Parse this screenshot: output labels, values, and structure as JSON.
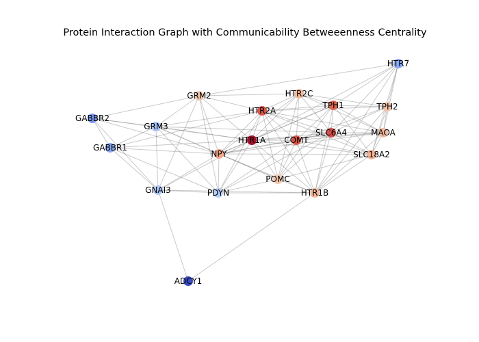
{
  "title": "Protein Interaction Graph with Communicability Betweeenness Centrality",
  "nodes": [
    {
      "id": "HTR7",
      "color": "#88a8f4"
    },
    {
      "id": "HTR2C",
      "color": "#f2b99c"
    },
    {
      "id": "GRM2",
      "color": "#f0c6ad"
    },
    {
      "id": "TPH1",
      "color": "#dd6651"
    },
    {
      "id": "TPH2",
      "color": "#f2c4ab"
    },
    {
      "id": "HTR2A",
      "color": "#d9574a"
    },
    {
      "id": "GABBR2",
      "color": "#7a97ef"
    },
    {
      "id": "GRM3",
      "color": "#a8c2f8"
    },
    {
      "id": "SLC6A4",
      "color": "#d4504a"
    },
    {
      "id": "MAOA",
      "color": "#f2bba0"
    },
    {
      "id": "HTR1A",
      "color": "#a50f29"
    },
    {
      "id": "COMT",
      "color": "#d65345"
    },
    {
      "id": "GABBR1",
      "color": "#88a6f2"
    },
    {
      "id": "NPY",
      "color": "#f5a88a"
    },
    {
      "id": "SLC18A2",
      "color": "#f3b294"
    },
    {
      "id": "POMC",
      "color": "#f3c5ad"
    },
    {
      "id": "GNAI3",
      "color": "#b0c8f8"
    },
    {
      "id": "PDYN",
      "color": "#b7cdf9"
    },
    {
      "id": "HTR1B",
      "color": "#f3b89c"
    },
    {
      "id": "ADCY1",
      "color": "#3a4cc0"
    }
  ],
  "edges": [
    [
      "HTR7",
      "HTR1A"
    ],
    [
      "HTR7",
      "TPH1"
    ],
    [
      "HTR7",
      "TPH2"
    ],
    [
      "HTR7",
      "GRM2"
    ],
    [
      "HTR7",
      "MAOA"
    ],
    [
      "HTR7",
      "SLC18A2"
    ],
    [
      "HTR7",
      "SLC6A4"
    ],
    [
      "HTR7",
      "HTR1B"
    ],
    [
      "HTR2C",
      "HTR2A"
    ],
    [
      "HTR2C",
      "TPH1"
    ],
    [
      "HTR2C",
      "TPH2"
    ],
    [
      "HTR2C",
      "SLC6A4"
    ],
    [
      "HTR2C",
      "COMT"
    ],
    [
      "HTR2C",
      "HTR1A"
    ],
    [
      "HTR2C",
      "MAOA"
    ],
    [
      "HTR2C",
      "POMC"
    ],
    [
      "HTR2C",
      "GRM2"
    ],
    [
      "HTR2C",
      "NPY"
    ],
    [
      "GRM2",
      "GABBR2"
    ],
    [
      "GRM2",
      "GRM3"
    ],
    [
      "GRM2",
      "HTR2A"
    ],
    [
      "GRM2",
      "HTR1A"
    ],
    [
      "GRM2",
      "NPY"
    ],
    [
      "GRM2",
      "GNAI3"
    ],
    [
      "GRM2",
      "PDYN"
    ],
    [
      "TPH1",
      "TPH2"
    ],
    [
      "TPH1",
      "HTR2A"
    ],
    [
      "TPH1",
      "SLC6A4"
    ],
    [
      "TPH1",
      "MAOA"
    ],
    [
      "TPH1",
      "COMT"
    ],
    [
      "TPH1",
      "HTR1A"
    ],
    [
      "TPH1",
      "SLC18A2"
    ],
    [
      "TPH1",
      "NPY"
    ],
    [
      "TPH1",
      "POMC"
    ],
    [
      "TPH1",
      "HTR1B"
    ],
    [
      "TPH2",
      "SLC6A4"
    ],
    [
      "TPH2",
      "MAOA"
    ],
    [
      "TPH2",
      "SLC18A2"
    ],
    [
      "TPH2",
      "HTR2A"
    ],
    [
      "TPH2",
      "COMT"
    ],
    [
      "TPH2",
      "HTR1B"
    ],
    [
      "HTR2A",
      "SLC6A4"
    ],
    [
      "HTR2A",
      "COMT"
    ],
    [
      "HTR2A",
      "HTR1A"
    ],
    [
      "HTR2A",
      "MAOA"
    ],
    [
      "HTR2A",
      "NPY"
    ],
    [
      "HTR2A",
      "GRM3"
    ],
    [
      "HTR2A",
      "SLC18A2"
    ],
    [
      "HTR2A",
      "POMC"
    ],
    [
      "HTR2A",
      "PDYN"
    ],
    [
      "HTR2A",
      "HTR1B"
    ],
    [
      "HTR2A",
      "GABBR1"
    ],
    [
      "GABBR2",
      "GRM3"
    ],
    [
      "GABBR2",
      "GABBR1"
    ],
    [
      "GABBR2",
      "HTR1A"
    ],
    [
      "GABBR2",
      "NPY"
    ],
    [
      "GABBR2",
      "GNAI3"
    ],
    [
      "GRM3",
      "GABBR1"
    ],
    [
      "GRM3",
      "HTR1A"
    ],
    [
      "GRM3",
      "NPY"
    ],
    [
      "GRM3",
      "GNAI3"
    ],
    [
      "GRM3",
      "PDYN"
    ],
    [
      "GRM3",
      "POMC"
    ],
    [
      "GRM3",
      "SLC6A4"
    ],
    [
      "SLC6A4",
      "MAOA"
    ],
    [
      "SLC6A4",
      "COMT"
    ],
    [
      "SLC6A4",
      "HTR1A"
    ],
    [
      "SLC6A4",
      "SLC18A2"
    ],
    [
      "SLC6A4",
      "NPY"
    ],
    [
      "SLC6A4",
      "POMC"
    ],
    [
      "SLC6A4",
      "HTR1B"
    ],
    [
      "SLC6A4",
      "PDYN"
    ],
    [
      "MAOA",
      "SLC18A2"
    ],
    [
      "MAOA",
      "COMT"
    ],
    [
      "MAOA",
      "HTR1A"
    ],
    [
      "MAOA",
      "HTR1B"
    ],
    [
      "MAOA",
      "NPY"
    ],
    [
      "HTR1A",
      "COMT"
    ],
    [
      "HTR1A",
      "NPY"
    ],
    [
      "HTR1A",
      "GABBR1"
    ],
    [
      "HTR1A",
      "POMC"
    ],
    [
      "HTR1A",
      "PDYN"
    ],
    [
      "HTR1A",
      "HTR1B"
    ],
    [
      "HTR1A",
      "GNAI3"
    ],
    [
      "HTR1A",
      "SLC18A2"
    ],
    [
      "COMT",
      "NPY"
    ],
    [
      "COMT",
      "SLC18A2"
    ],
    [
      "COMT",
      "POMC"
    ],
    [
      "COMT",
      "HTR1B"
    ],
    [
      "COMT",
      "PDYN"
    ],
    [
      "GABBR1",
      "NPY"
    ],
    [
      "GABBR1",
      "GNAI3"
    ],
    [
      "GABBR1",
      "PDYN"
    ],
    [
      "NPY",
      "POMC"
    ],
    [
      "NPY",
      "PDYN"
    ],
    [
      "NPY",
      "GNAI3"
    ],
    [
      "NPY",
      "HTR1B"
    ],
    [
      "NPY",
      "SLC18A2"
    ],
    [
      "SLC18A2",
      "HTR1B"
    ],
    [
      "SLC18A2",
      "POMC"
    ],
    [
      "POMC",
      "HTR1B"
    ],
    [
      "POMC",
      "PDYN"
    ],
    [
      "GNAI3",
      "PDYN"
    ],
    [
      "GNAI3",
      "ADCY1"
    ],
    [
      "GNAI3",
      "HTR1B"
    ],
    [
      "PDYN",
      "HTR1B"
    ],
    [
      "HTR1B",
      "ADCY1"
    ]
  ]
}
